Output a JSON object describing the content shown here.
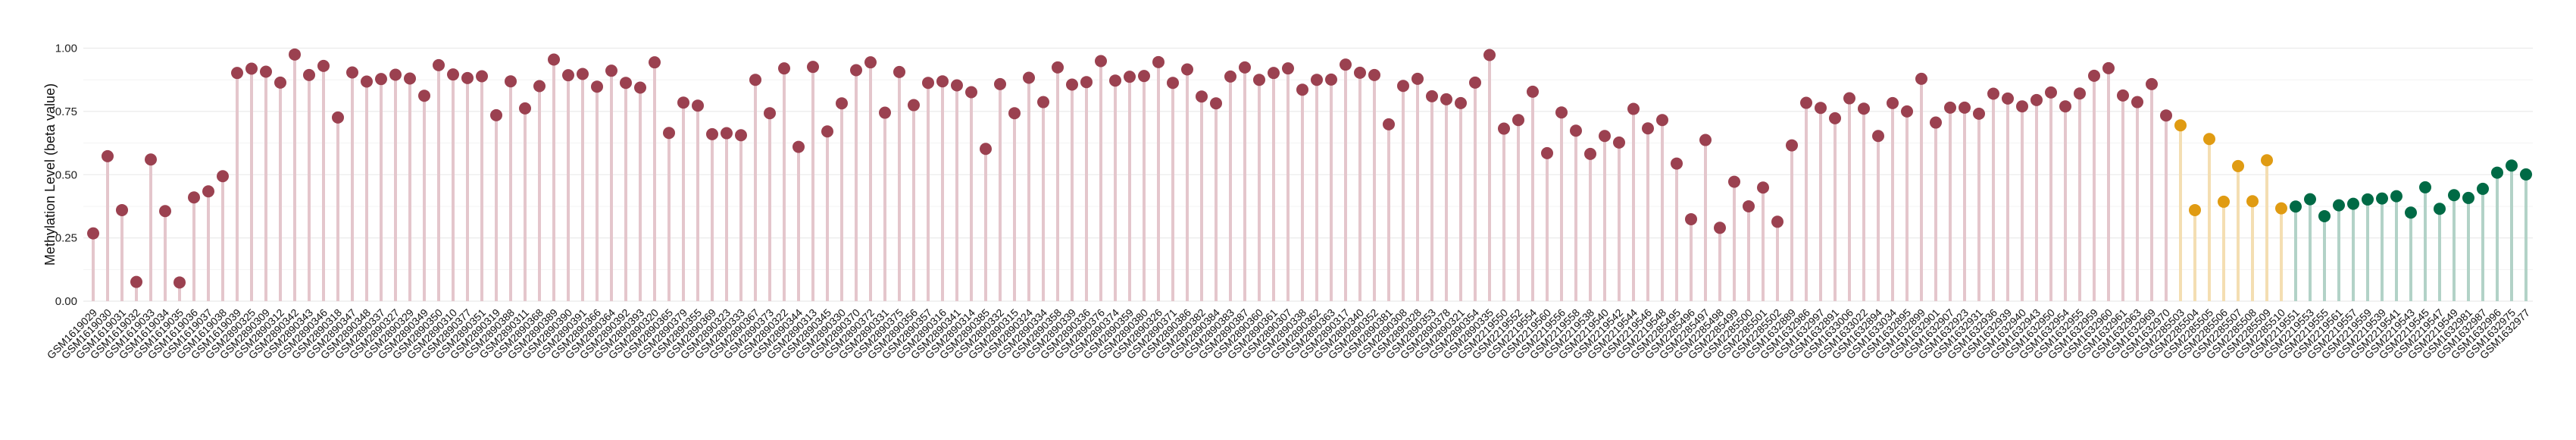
{
  "chart_data": {
    "type": "lollipop",
    "title": "",
    "xlabel": "",
    "ylabel": "Methylation Level (beta value)",
    "ylim": [
      0,
      1
    ],
    "yticks": [
      "0.00",
      "0.25",
      "0.50",
      "0.75",
      "1.00"
    ],
    "grid": true,
    "legend": "none",
    "series": [
      {
        "color": "#9B4150",
        "stem_color": "#E4C6CC",
        "categories": [
          "GSM1619029",
          "GSM1619030",
          "GSM1619031",
          "GSM1619032",
          "GSM1619033",
          "GSM1619034",
          "GSM1619035",
          "GSM1619036",
          "GSM1619037",
          "GSM1619038",
          "GSM1619039",
          "GSM2890325",
          "GSM2890309",
          "GSM2890312",
          "GSM2890342",
          "GSM2890343",
          "GSM2890346",
          "GSM2890318",
          "GSM2890347",
          "GSM2890348",
          "GSM2890337",
          "GSM2890327",
          "GSM2890329",
          "GSM2890349",
          "GSM2890350",
          "GSM2890310",
          "GSM2890377",
          "GSM2890351",
          "GSM2890319",
          "GSM2890388",
          "GSM2890311",
          "GSM2890368",
          "GSM2890389",
          "GSM2890390",
          "GSM2890391",
          "GSM2890366",
          "GSM2890364",
          "GSM2890392",
          "GSM2890393",
          "GSM2890320",
          "GSM2890365",
          "GSM2890379",
          "GSM2890355",
          "GSM2890369",
          "GSM2890323",
          "GSM2890333",
          "GSM2890367",
          "GSM2890373",
          "GSM2890322",
          "GSM2890344",
          "GSM2890313",
          "GSM2890345",
          "GSM2890330",
          "GSM2890370",
          "GSM2890372",
          "GSM2890331",
          "GSM2890375",
          "GSM2890356",
          "GSM2890357",
          "GSM2890316",
          "GSM2890341",
          "GSM2890314",
          "GSM2890385",
          "GSM2890332",
          "GSM2890315",
          "GSM2890324",
          "GSM2890334",
          "GSM2890358",
          "GSM2890339",
          "GSM2890336",
          "GSM2890376",
          "GSM2890374",
          "GSM2890359",
          "GSM2890380",
          "GSM2890326",
          "GSM2890371",
          "GSM2890386",
          "GSM2890382",
          "GSM2890384",
          "GSM2890383",
          "GSM2890387",
          "GSM2890360",
          "GSM2890361",
          "GSM2890307",
          "GSM2890338",
          "GSM2890362",
          "GSM2890363",
          "GSM2890317",
          "GSM2890340",
          "GSM2890352",
          "GSM2890381",
          "GSM2890308",
          "GSM2890328",
          "GSM2890353",
          "GSM2890378",
          "GSM2890321",
          "GSM2890354",
          "GSM2890335",
          "GSM2219550",
          "GSM2219552",
          "GSM2219554",
          "GSM2219560",
          "GSM2219556",
          "GSM2219558",
          "GSM2219538",
          "GSM2219540",
          "GSM2219542",
          "GSM2219544",
          "GSM2219546",
          "GSM2219548",
          "GSM2285495",
          "GSM2285496",
          "GSM2285497",
          "GSM2285498",
          "GSM2285499",
          "GSM2285500",
          "GSM2285501",
          "GSM2285502",
          "GSM1632889",
          "GSM1632986",
          "GSM1632997",
          "GSM1632891",
          "GSM1633006",
          "GSM1633022",
          "GSM1632894",
          "GSM1633034",
          "GSM1632895",
          "GSM1632899",
          "GSM1632901",
          "GSM1632907",
          "GSM1632923",
          "GSM1632931",
          "GSM1632936",
          "GSM1632939",
          "GSM1632940",
          "GSM1632943",
          "GSM1632950",
          "GSM1632954",
          "GSM1632955",
          "GSM1632959",
          "GSM1632960",
          "GSM1632961",
          "GSM1632963",
          "GSM1632969",
          "GSM1632970"
        ],
        "values": [
          0.268,
          0.573,
          0.36,
          0.076,
          0.56,
          0.356,
          0.074,
          0.41,
          0.434,
          0.494,
          0.902,
          0.919,
          0.907,
          0.864,
          0.975,
          0.894,
          0.93,
          0.726,
          0.904,
          0.868,
          0.878,
          0.895,
          0.88,
          0.812,
          0.933,
          0.896,
          0.882,
          0.889,
          0.735,
          0.869,
          0.762,
          0.85,
          0.955,
          0.893,
          0.898,
          0.848,
          0.911,
          0.863,
          0.844,
          0.944,
          0.665,
          0.785,
          0.773,
          0.66,
          0.664,
          0.656,
          0.875,
          0.743,
          0.92,
          0.61,
          0.926,
          0.671,
          0.782,
          0.913,
          0.944,
          0.745,
          0.906,
          0.775,
          0.863,
          0.869,
          0.853,
          0.826,
          0.602,
          0.858,
          0.743,
          0.883,
          0.787,
          0.924,
          0.856,
          0.866,
          0.949,
          0.872,
          0.887,
          0.89,
          0.945,
          0.863,
          0.916,
          0.809,
          0.782,
          0.888,
          0.924,
          0.875,
          0.902,
          0.92,
          0.836,
          0.875,
          0.876,
          0.935,
          0.903,
          0.894,
          0.699,
          0.851,
          0.879,
          0.81,
          0.798,
          0.783,
          0.864,
          0.973,
          0.682,
          0.716,
          0.828,
          0.585,
          0.746,
          0.674,
          0.582,
          0.653,
          0.627,
          0.76,
          0.683,
          0.716,
          0.544,
          0.324,
          0.637,
          0.29,
          0.472,
          0.375,
          0.449,
          0.314,
          0.616,
          0.784,
          0.764,
          0.723,
          0.802,
          0.761,
          0.653,
          0.783,
          0.75,
          0.879,
          0.706,
          0.765,
          0.765,
          0.741,
          0.82,
          0.801,
          0.77,
          0.795,
          0.825,
          0.77,
          0.821,
          0.891,
          0.921,
          0.813,
          0.787,
          0.858,
          0.734
        ]
      },
      {
        "color": "#E09B12",
        "stem_color": "#F4DEB2",
        "categories": [
          "GSM2285503",
          "GSM2285504",
          "GSM2285505",
          "GSM2285506",
          "GSM2285507",
          "GSM2285508",
          "GSM2285509",
          "GSM2285510"
        ],
        "values": [
          0.695,
          0.36,
          0.641,
          0.393,
          0.534,
          0.395,
          0.557,
          0.367
        ]
      },
      {
        "color": "#006A45",
        "stem_color": "#B2D2C7",
        "categories": [
          "GSM2219551",
          "GSM2219553",
          "GSM2219555",
          "GSM2219561",
          "GSM2219557",
          "GSM2219559",
          "GSM2219539",
          "GSM2219541",
          "GSM2219543",
          "GSM2219545",
          "GSM2219547",
          "GSM2219549",
          "GSM1632981",
          "GSM1632987",
          "GSM1632996",
          "GSM1632975",
          "GSM1632977"
        ],
        "values": [
          0.374,
          0.403,
          0.336,
          0.379,
          0.385,
          0.402,
          0.406,
          0.415,
          0.35,
          0.45,
          0.365,
          0.419,
          0.408,
          0.444,
          0.508,
          0.536,
          0.501
        ]
      }
    ]
  }
}
